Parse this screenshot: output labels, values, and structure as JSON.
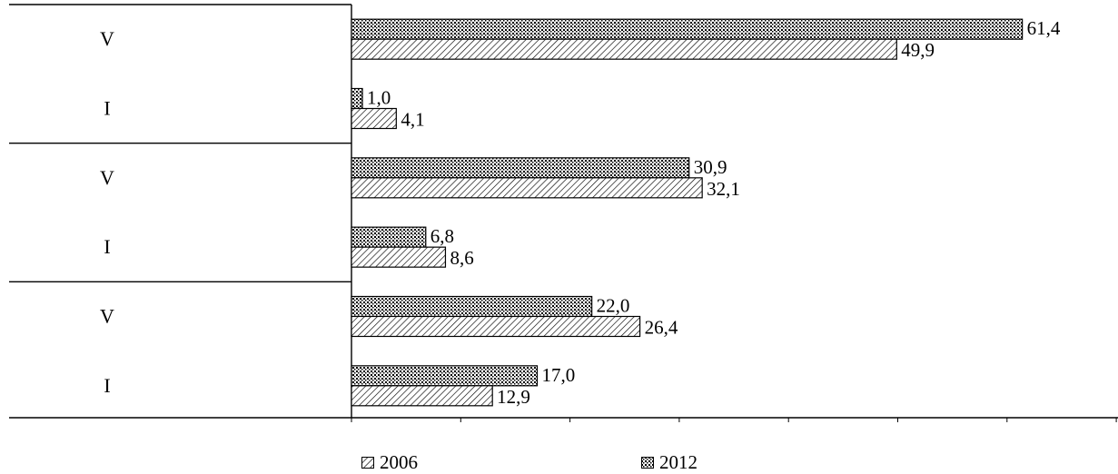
{
  "chart_data": {
    "type": "bar",
    "orientation": "horizontal",
    "categories": [
      "V",
      "I",
      "V",
      "I",
      "V",
      "I"
    ],
    "group_separators_after": [
      1,
      3
    ],
    "series": [
      {
        "name": "2012",
        "pattern": "dots",
        "values": [
          61.4,
          1.0,
          30.9,
          6.8,
          22.0,
          17.0
        ],
        "labels": [
          "61,4",
          "1,0",
          "30,9",
          "6,8",
          "22,0",
          "17,0"
        ]
      },
      {
        "name": "2006",
        "pattern": "hatch",
        "values": [
          49.9,
          4.1,
          32.1,
          8.6,
          26.4,
          12.9
        ],
        "labels": [
          "49,9",
          "4,1",
          "32,1",
          "8,6",
          "26,4",
          "12,9"
        ]
      }
    ],
    "xlim": [
      0,
      70
    ],
    "x_tick_step": 10,
    "grid": false,
    "legend_position": "bottom",
    "legend_order": [
      "2006",
      "2012"
    ],
    "colors": {
      "bar_edge": "#000000",
      "fill": "#ffffff",
      "axis": "#000000"
    }
  },
  "legend": {
    "item_2006": "2006",
    "item_2012": "2012"
  }
}
